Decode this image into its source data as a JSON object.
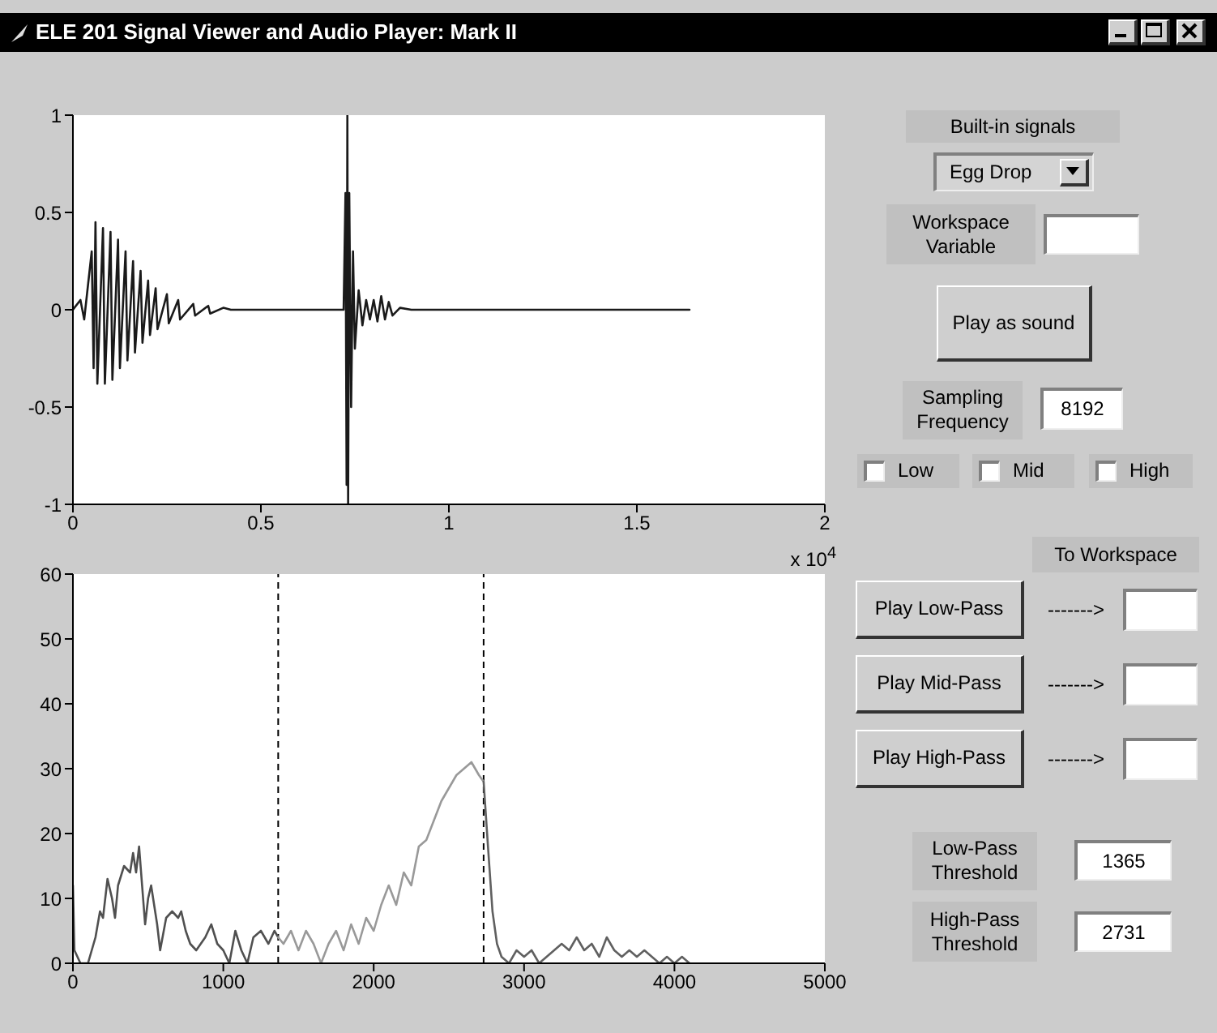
{
  "chart_data": [
    {
      "type": "line",
      "xlim": [
        0,
        2
      ],
      "xticks": [
        0,
        0.5,
        1,
        1.5,
        2
      ],
      "ylim": [
        -1,
        1
      ],
      "yticks": [
        -1,
        -0.5,
        0,
        0.5,
        1
      ],
      "annotations": [
        "x 10$^{4}$"
      ],
      "series": [
        {
          "color": "#1a1a1a",
          "x": [
            0,
            0.02,
            0.03,
            0.05,
            0.055,
            0.06,
            0.065,
            0.08,
            0.085,
            0.1,
            0.105,
            0.12,
            0.125,
            0.14,
            0.145,
            0.16,
            0.165,
            0.18,
            0.185,
            0.2,
            0.205,
            0.22,
            0.225,
            0.25,
            0.255,
            0.28,
            0.285,
            0.32,
            0.325,
            0.36,
            0.365,
            0.4,
            0.42,
            0.72,
            0.725,
            0.728,
            0.73,
            0.732,
            0.735,
            0.74,
            0.745,
            0.75,
            0.76,
            0.77,
            0.78,
            0.79,
            0.8,
            0.81,
            0.82,
            0.83,
            0.84,
            0.85,
            0.87,
            0.9,
            1.0,
            1.64
          ],
          "values": [
            0,
            0.05,
            -0.05,
            0.3,
            -0.3,
            0.45,
            -0.38,
            0.42,
            -0.38,
            0.4,
            -0.36,
            0.36,
            -0.3,
            0.3,
            -0.26,
            0.25,
            -0.22,
            0.2,
            -0.17,
            0.15,
            -0.13,
            0.11,
            -0.1,
            0.08,
            -0.07,
            0.05,
            -0.05,
            0.03,
            -0.03,
            0.02,
            -0.02,
            0.01,
            0,
            0,
            0.6,
            -0.9,
            1,
            -1,
            0.6,
            -0.5,
            0.3,
            -0.2,
            0.1,
            -0.08,
            0.05,
            -0.05,
            0.05,
            -0.06,
            0.07,
            -0.05,
            0.04,
            -0.03,
            0.01,
            0,
            0,
            0
          ]
        }
      ]
    },
    {
      "type": "line",
      "xlim": [
        0,
        5000
      ],
      "xticks": [
        0,
        1000,
        2000,
        3000,
        4000,
        5000
      ],
      "ylim": [
        0,
        60
      ],
      "yticks": [
        0,
        10,
        20,
        30,
        40,
        50,
        60
      ],
      "ref_lines": [
        {
          "axis": "x",
          "value": 1365,
          "color": "#000000",
          "line_style": "dashed"
        },
        {
          "axis": "x",
          "value": 2731,
          "color": "#000000",
          "line_style": "dashed"
        }
      ],
      "series": [
        {
          "color": "#505050",
          "x": [
            0,
            10,
            50,
            100,
            150,
            180,
            200,
            230,
            260,
            280,
            300,
            340,
            380,
            400,
            420,
            440,
            460,
            480,
            500,
            520,
            560,
            580,
            620,
            660,
            700,
            720,
            750,
            780,
            820,
            880,
            920,
            960,
            1000,
            1040,
            1080,
            1120,
            1160,
            1200,
            1250,
            1300,
            1340,
            1365
          ],
          "values": [
            12,
            2,
            0,
            0,
            4,
            8,
            7,
            13,
            10,
            7,
            12,
            15,
            14,
            17,
            14,
            18,
            12,
            6,
            10,
            12,
            6,
            2,
            7,
            8,
            7,
            8,
            5,
            3,
            2,
            4,
            6,
            3,
            2,
            0,
            5,
            2,
            0,
            4,
            5,
            3,
            5,
            4
          ]
        },
        {
          "color": "#999999",
          "x": [
            1365,
            1400,
            1450,
            1500,
            1550,
            1600,
            1650,
            1700,
            1750,
            1800,
            1850,
            1900,
            1950,
            2000,
            2050,
            2100,
            2150,
            2200,
            2250,
            2300,
            2350,
            2400,
            2450,
            2500,
            2550,
            2600,
            2650,
            2700,
            2731
          ],
          "values": [
            4,
            3,
            5,
            2,
            5,
            3,
            0,
            3,
            5,
            2,
            6,
            3,
            7,
            5,
            9,
            12,
            9,
            14,
            12,
            18,
            19,
            22,
            25,
            27,
            29,
            30,
            31,
            29,
            28
          ]
        },
        {
          "color": "#606060",
          "x": [
            2731,
            2760,
            2790,
            2820,
            2850,
            2900,
            2950,
            3000,
            3050,
            3100,
            3150,
            3200,
            3250,
            3300,
            3350,
            3400,
            3450,
            3500,
            3550,
            3600,
            3650,
            3700,
            3750,
            3800,
            3850,
            3900,
            3950,
            4000,
            4050,
            4100
          ],
          "values": [
            28,
            18,
            8,
            3,
            1,
            0,
            2,
            1,
            2,
            0,
            1,
            2,
            3,
            2,
            4,
            2,
            3,
            1,
            4,
            2,
            1,
            2,
            1,
            2,
            1,
            0,
            1,
            0,
            1,
            0
          ]
        }
      ]
    },
    {
      "type": "other",
      "title": "ELE 201 Signal Viewer and Audio Player: Mark II",
      "annotations": [
        "Built-in signals",
        "Egg Drop",
        "Workspace Variable",
        "Play as sound",
        "Sampling Frequency",
        "8192",
        "Low",
        "Mid",
        "High",
        "To Workspace",
        "Play Low-Pass",
        "------->",
        "Play Mid-Pass",
        "------->",
        "Play High-Pass",
        "------->",
        "Low-Pass Threshold",
        "1365",
        "High-Pass Threshold",
        "2731"
      ]
    }
  ]
}
